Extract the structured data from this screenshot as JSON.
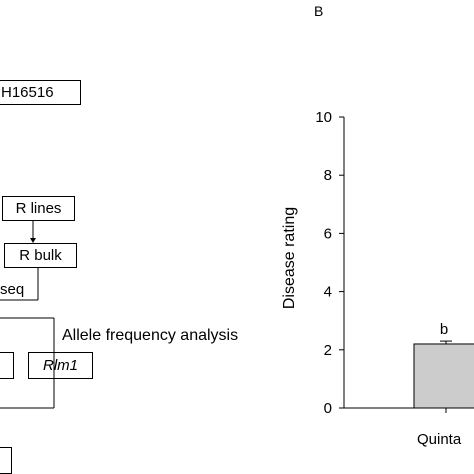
{
  "panel_b": {
    "label": "B"
  },
  "flowchart": {
    "parent_box": "H16516",
    "r_lines_box": "R lines",
    "r_bulk_box": "R bulk",
    "seq_text": "seq",
    "allele_text": "Allele frequency analysis",
    "rlm1_box": "Rlm1"
  },
  "chart_data": {
    "type": "bar",
    "ylabel": "Disease rating",
    "xlabel": "",
    "ylim": [
      0,
      10
    ],
    "yticks": [
      0,
      2,
      4,
      6,
      8,
      10
    ],
    "categories": [
      "Quinta"
    ],
    "values": [
      2.2
    ],
    "error": [
      0.1
    ],
    "annotations": [
      "b"
    ],
    "bar_color": "#cccccc",
    "grid": false
  }
}
